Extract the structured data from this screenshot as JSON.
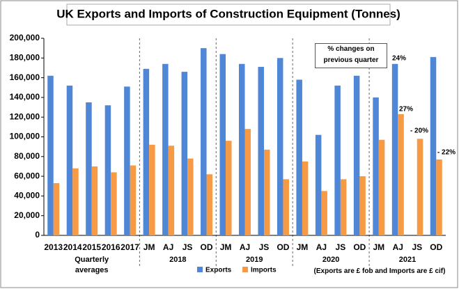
{
  "chart_data": {
    "type": "bar",
    "title": "UK Exports and Imports of Construction Equipment (Tonnes)",
    "categories": [
      "2013",
      "2014",
      "2015",
      "2016",
      "2017",
      "JM",
      "AJ",
      "JS",
      "OD",
      "JM",
      "AJ",
      "JS",
      "OD",
      "JM",
      "AJ",
      "JS",
      "OD",
      "JM",
      "AJ",
      "JS",
      "OD"
    ],
    "groups": [
      "Quarterly averages",
      "2018",
      "2019",
      "2020",
      "2021"
    ],
    "series": [
      {
        "name": "Exports",
        "color": "#4f86d6",
        "values": [
          162000,
          152000,
          135000,
          132000,
          151000,
          169000,
          174000,
          166000,
          190000,
          184000,
          174000,
          171000,
          180000,
          158000,
          102000,
          152000,
          162000,
          140000,
          174000,
          null,
          181000
        ]
      },
      {
        "name": "Imports",
        "color": "#f79a45",
        "values": [
          53000,
          68000,
          70000,
          64000,
          71000,
          92000,
          91000,
          78000,
          62000,
          96000,
          108000,
          87000,
          57000,
          75000,
          45000,
          57000,
          60000,
          97000,
          123000,
          98000,
          77000
        ]
      }
    ],
    "ylim": [
      0,
      200000
    ],
    "yticks": [
      0,
      {
        "value": 20000,
        "label": "20,000"
      },
      {
        "value": 40000,
        "label": "40,000"
      },
      {
        "value": 60000,
        "label": "60,000"
      },
      {
        "value": 80000,
        "label": "80,000"
      },
      {
        "value": 100000,
        "label": "100,000"
      },
      {
        "value": 120000,
        "label": "120,000"
      },
      {
        "value": 140000,
        "label": "140,000"
      },
      {
        "value": 160000,
        "label": "160,000"
      },
      {
        "value": 180000,
        "label": "180,000"
      },
      {
        "value": 200000,
        "label": "200,000"
      }
    ],
    "grid": false,
    "annotation_box": "% changes on previous quarter",
    "annotations": [
      {
        "text": "24%",
        "color": "#000000"
      },
      {
        "text": "27%",
        "color": "#000000"
      },
      {
        "text": "- 20%",
        "color": "#e00000"
      },
      {
        "text": "- 22%",
        "color": "#e00000"
      }
    ],
    "footnote": "(Exports are £ fob and Imports are £ cif)"
  }
}
